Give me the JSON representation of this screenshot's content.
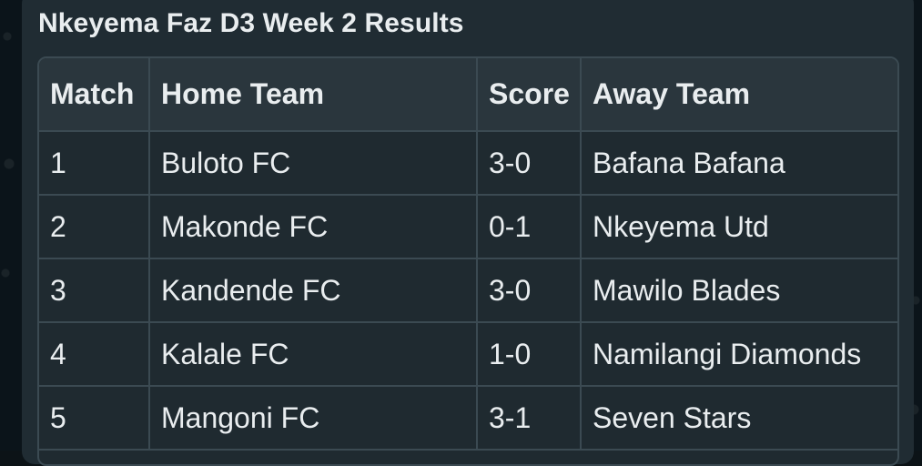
{
  "message": {
    "title": "Nkeyema Faz D3 Week 2 Results",
    "table": {
      "headers": [
        "Match",
        "Home Team",
        "Score",
        "Away Team"
      ],
      "rows": [
        {
          "match": "1",
          "home": "Buloto FC",
          "score": "3-0",
          "away": "Bafana Bafana"
        },
        {
          "match": "2",
          "home": "Makonde FC",
          "score": "0-1",
          "away": "Nkeyema Utd"
        },
        {
          "match": "3",
          "home": "Kandende FC",
          "score": "3-0",
          "away": "Mawilo Blades"
        },
        {
          "match": "4",
          "home": "Kalale FC",
          "score": "1-0",
          "away": "Namilangi Diamonds"
        },
        {
          "match": "5",
          "home": "Mangoni FC",
          "score": "3-1",
          "away": "Seven Stars"
        }
      ]
    }
  },
  "colors": {
    "bubble": "#202c33",
    "header_row": "#2a363d",
    "body_row": "#1f2a30",
    "border": "#3b4a52",
    "text": "#e9edef",
    "wallpaper": "#0b141a"
  }
}
